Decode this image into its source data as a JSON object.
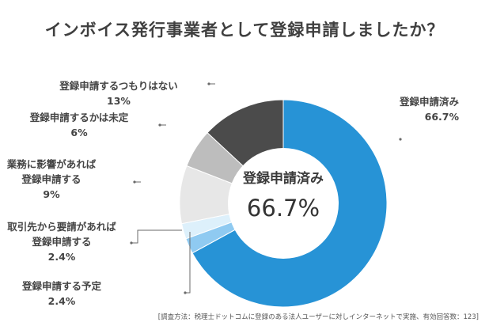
{
  "title": "インボイス発行事業者として登録申請しましたか？",
  "footnote": "[調査方法：税理士ドットコムに登録のある法人ユーザーに対しインターネットで実施、有効回答数：123]",
  "chart_data": {
    "type": "pie",
    "title": "インボイス発行事業者として登録申請しましたか？",
    "center_label": "登録申請済み",
    "center_value": "66.7%",
    "slices": [
      {
        "name": "登録申請済み",
        "value": 66.7,
        "label_lines": [
          "登録申請済み"
        ],
        "pct_text": "66.7%",
        "color": "#2793d6"
      },
      {
        "name": "登録申請する予定",
        "value": 2.4,
        "label_lines": [
          "登録申請する予定"
        ],
        "pct_text": "2.4%",
        "color": "#8fcaf1"
      },
      {
        "name": "取引先から要請があれば登録申請する",
        "value": 2.4,
        "label_lines": [
          "取引先から要請があれば",
          "登録申請する"
        ],
        "pct_text": "2.4%",
        "color": "#ddf0fb"
      },
      {
        "name": "業務に影響があれば登録申請する",
        "value": 9,
        "label_lines": [
          "業務に影響があれば",
          "登録申請する"
        ],
        "pct_text": "9%",
        "color": "#e7e7e7"
      },
      {
        "name": "登録申請するかは未定",
        "value": 6,
        "label_lines": [
          "登録申請するかは未定"
        ],
        "pct_text": "6%",
        "color": "#bdbdbd"
      },
      {
        "name": "登録申請するつもりはない",
        "value": 13,
        "label_lines": [
          "登録申請するつもりはない"
        ],
        "pct_text": "13%",
        "color": "#4b4b4b"
      }
    ]
  }
}
